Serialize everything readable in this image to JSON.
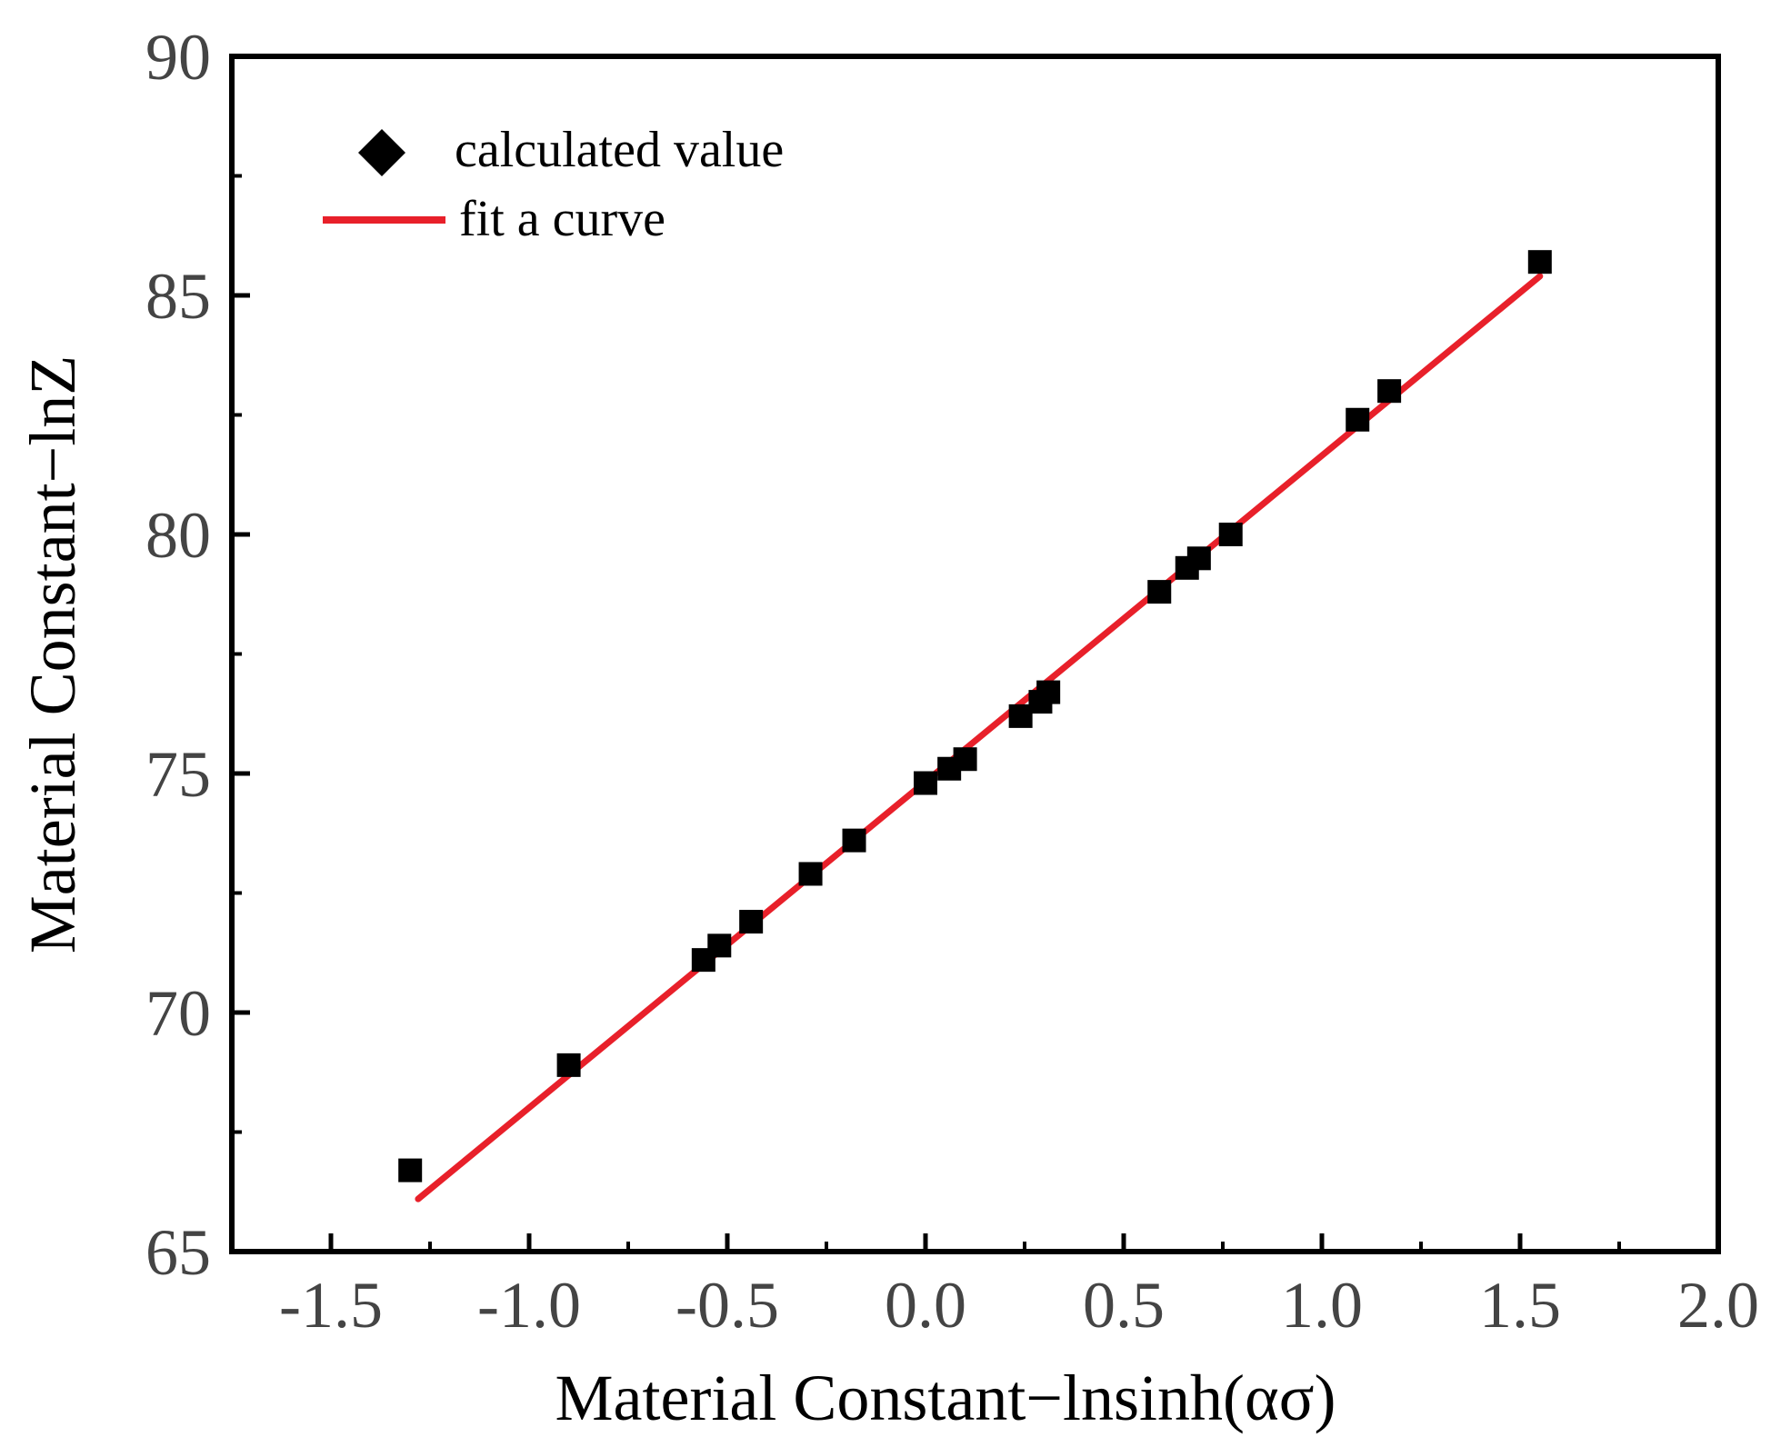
{
  "chart_data": {
    "type": "scatter",
    "title": "",
    "xlabel": "Material Constant−lnsinh(ασ)",
    "ylabel": "Material Constant−lnZ",
    "xlim": [
      -1.75,
      2.0
    ],
    "ylim": [
      65,
      90
    ],
    "xticks": [
      -1.5,
      -1.0,
      -0.5,
      0.0,
      0.5,
      1.0,
      1.5,
      2.0
    ],
    "xtick_labels": [
      "-1.5",
      "-1.0",
      "-0.5",
      "0.0",
      "0.5",
      "1.0",
      "1.5",
      "2.0"
    ],
    "yticks": [
      65,
      70,
      75,
      80,
      85,
      90
    ],
    "ytick_labels": [
      "65",
      "70",
      "75",
      "80",
      "85",
      "90"
    ],
    "grid": false,
    "legend": {
      "placement": "top-left",
      "entries": [
        {
          "label": "calculated value",
          "marker": "diamond",
          "color": "#000000"
        },
        {
          "label": "fit a curve",
          "marker": "line",
          "color": "#e8202a"
        }
      ]
    },
    "series": [
      {
        "name": "calculated value",
        "kind": "scatter",
        "marker": "square",
        "color": "#000000",
        "points": [
          {
            "x": -1.3,
            "y": 66.7
          },
          {
            "x": -0.9,
            "y": 68.9
          },
          {
            "x": -0.56,
            "y": 71.1
          },
          {
            "x": -0.52,
            "y": 71.4
          },
          {
            "x": -0.44,
            "y": 71.9
          },
          {
            "x": -0.29,
            "y": 72.9
          },
          {
            "x": -0.18,
            "y": 73.6
          },
          {
            "x": 0.0,
            "y": 74.8
          },
          {
            "x": 0.06,
            "y": 75.1
          },
          {
            "x": 0.1,
            "y": 75.3
          },
          {
            "x": 0.24,
            "y": 76.2
          },
          {
            "x": 0.29,
            "y": 76.5
          },
          {
            "x": 0.31,
            "y": 76.7
          },
          {
            "x": 0.59,
            "y": 78.8
          },
          {
            "x": 0.66,
            "y": 79.3
          },
          {
            "x": 0.69,
            "y": 79.5
          },
          {
            "x": 0.77,
            "y": 80.0
          },
          {
            "x": 1.09,
            "y": 82.4
          },
          {
            "x": 1.17,
            "y": 83.0
          },
          {
            "x": 1.55,
            "y": 85.7
          }
        ]
      },
      {
        "name": "fit a curve",
        "kind": "line",
        "color": "#e8202a",
        "x": [
          -1.28,
          1.55
        ],
        "y": [
          66.1,
          85.4
        ]
      }
    ]
  }
}
